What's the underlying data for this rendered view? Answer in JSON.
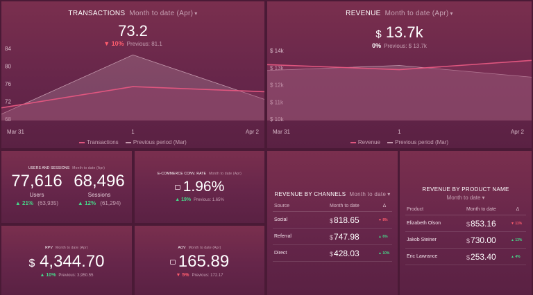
{
  "transactions": {
    "title": "TRANSACTIONS",
    "period": "Month to date (Apr)",
    "value": "73.2",
    "delta": "▼ 10%",
    "previous": "Previous: 81.1",
    "legend_current": "Transactions",
    "legend_previous": "Previous period (Mar)"
  },
  "revenue": {
    "title": "REVENUE",
    "period": "Month to date (Apr)",
    "value": "13.7k",
    "currency": "$",
    "delta": "0%",
    "previous": "Previous: $ 13.7k",
    "legend_current": "Revenue",
    "legend_previous": "Previous period (Mar)"
  },
  "users_sessions": {
    "title": "USERS AND SESSIONS",
    "period": "Month to date (Apr)",
    "users_value": "77,616",
    "users_label": "Users",
    "users_delta": "▲ 21%",
    "users_prev": "(63,935)",
    "sessions_value": "68,496",
    "sessions_label": "Sessions",
    "sessions_delta": "▲ 12%",
    "sessions_prev": "(61,294)"
  },
  "ecommerce": {
    "title": "E-COMMERCE CONV. RATE",
    "period": "Month to date (Apr)",
    "value": "1.96%",
    "delta": "▲ 19%",
    "previous": "Previous: 1.65%"
  },
  "rpv": {
    "title": "RPV",
    "period": "Month to date (Apr)",
    "currency": "$",
    "value": "4,344.70",
    "delta": "▲ 10%",
    "previous": "Previous: 3,950.55"
  },
  "aov": {
    "title": "AOV",
    "period": "Month to date (Apr)",
    "value": "165.89",
    "delta": "▼ 5%",
    "previous": "Previous: 172.17"
  },
  "channels": {
    "title": "REVENUE BY CHANNELS",
    "period": "Month to date",
    "col_source": "Source",
    "col_value": "Month to date",
    "col_delta": "Δ",
    "rows": [
      {
        "name": "Social",
        "value": "818.65",
        "delta": "▼ 8%",
        "dir": "down"
      },
      {
        "name": "Referral",
        "value": "747.98",
        "delta": "▲ 6%",
        "dir": "up"
      },
      {
        "name": "Direct",
        "value": "428.03",
        "delta": "▲ 10%",
        "dir": "up"
      }
    ]
  },
  "products": {
    "title": "REVENUE BY PRODUCT NAME",
    "period": "Month to date",
    "col_product": "Product",
    "col_value": "Month to date",
    "col_delta": "Δ",
    "rows": [
      {
        "name": "Elizabeth Olson",
        "value": "853.16",
        "delta": "▼ 11%",
        "dir": "down"
      },
      {
        "name": "Jakob Steiner",
        "value": "730.00",
        "delta": "▲ 13%",
        "dir": "up"
      },
      {
        "name": "Eric Lawrance",
        "value": "253.40",
        "delta": "▲ 4%",
        "dir": "up"
      }
    ]
  },
  "colors": {
    "current_line": "#e0567f",
    "previous_line": "#c59aae",
    "up": "#46d98a",
    "down": "#ff5d6e"
  },
  "chart_data": [
    {
      "type": "area",
      "name": "transactions-chart",
      "categories": [
        "Mar 31",
        "1",
        "Apr 2"
      ],
      "y_ticks": [
        "84",
        "80",
        "76",
        "72",
        "68"
      ],
      "ylim": [
        68,
        86
      ],
      "series": [
        {
          "name": "Transactions",
          "values": [
            71,
            76,
            74.8
          ]
        },
        {
          "name": "Previous period (Mar)",
          "values": [
            69.5,
            83.5,
            73
          ]
        }
      ]
    },
    {
      "type": "area",
      "name": "revenue-chart",
      "categories": [
        "Mar 31",
        "1",
        "Apr 2"
      ],
      "y_ticks": [
        "$ 14k",
        "$ 13k",
        "$ 12k",
        "$ 11k",
        "$ 10k"
      ],
      "ylim": [
        10,
        14.4
      ],
      "series": [
        {
          "name": "Revenue",
          "values": [
            13.35,
            13.05,
            13.6
          ]
        },
        {
          "name": "Previous period (Mar)",
          "values": [
            13.0,
            13.3,
            12.6
          ]
        }
      ]
    }
  ]
}
